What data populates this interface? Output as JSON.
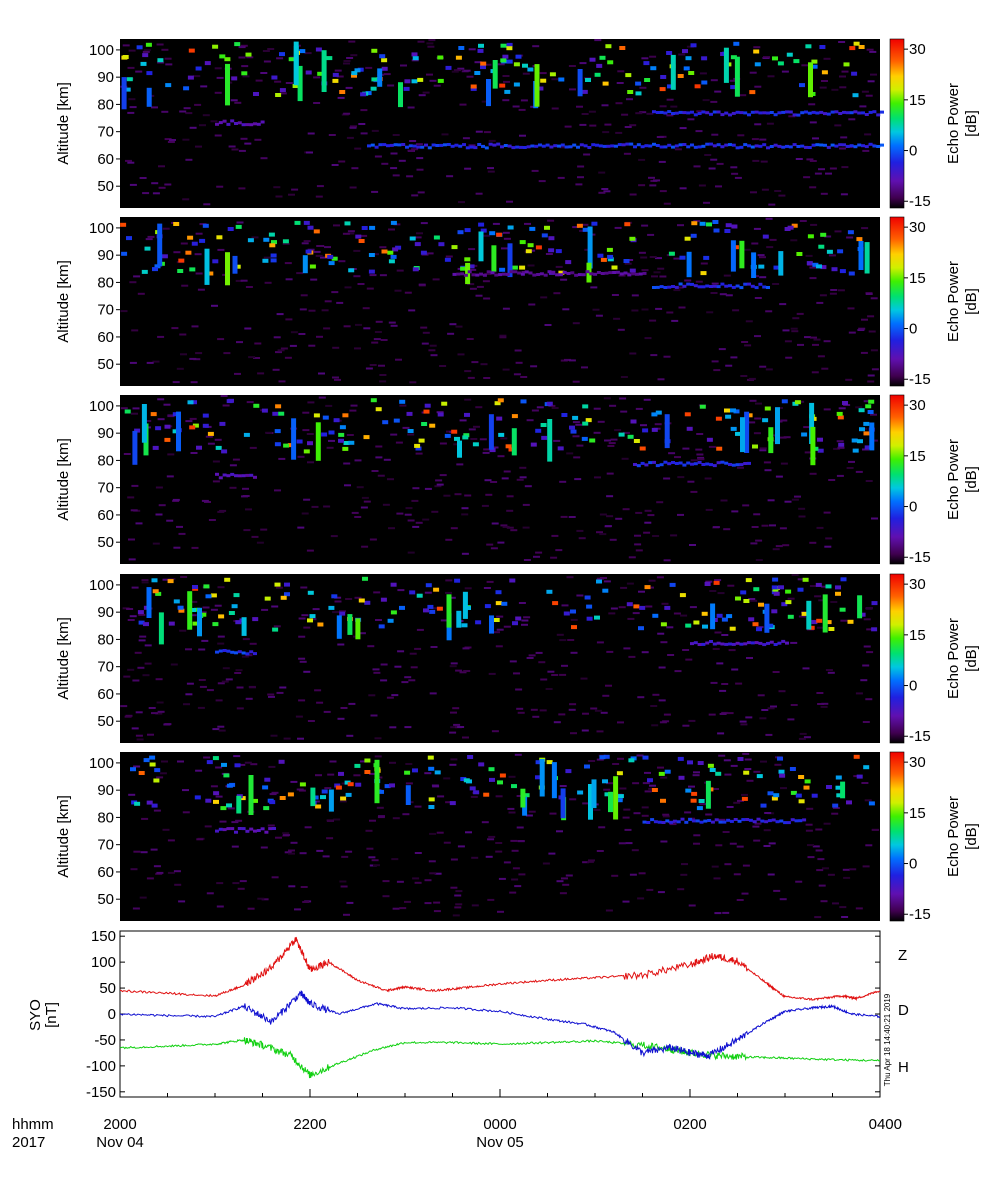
{
  "chart_data": [
    {
      "type": "heatmap",
      "title": "",
      "ylabel": "Altitude [km]",
      "ylim": [
        42,
        104
      ],
      "yticks": [
        50,
        60,
        70,
        80,
        90,
        100
      ],
      "colorbar": {
        "label": "Echo Power [dB]",
        "range": [
          -17,
          33
        ],
        "ticks": [
          -15,
          0,
          15,
          30
        ]
      },
      "features": [
        {
          "t0": 22.6,
          "t1": 28.0,
          "alt": 64.5,
          "power": -2
        },
        {
          "t0": 25.6,
          "t1": 28.0,
          "alt": 76.5,
          "power": -3
        },
        {
          "t0": 21.0,
          "t1": 21.5,
          "alt": 73.0,
          "power": -8
        }
      ]
    },
    {
      "type": "heatmap",
      "title": "",
      "ylabel": "Altitude [km]",
      "ylim": [
        42,
        104
      ],
      "yticks": [
        50,
        60,
        70,
        80,
        90,
        100
      ],
      "colorbar": {
        "label": "Echo Power [dB]",
        "range": [
          -17,
          33
        ],
        "ticks": [
          -15,
          0,
          15,
          30
        ]
      },
      "features": [
        {
          "t0": 25.6,
          "t1": 26.8,
          "alt": 78.5,
          "power": -2
        },
        {
          "t0": 23.5,
          "t1": 25.5,
          "alt": 83.0,
          "power": -10
        }
      ]
    },
    {
      "type": "heatmap",
      "title": "",
      "ylabel": "Altitude [km]",
      "ylim": [
        42,
        104
      ],
      "yticks": [
        50,
        60,
        70,
        80,
        90,
        100
      ],
      "colorbar": {
        "label": "Echo Power [dB]",
        "range": [
          -17,
          33
        ],
        "ticks": [
          -15,
          0,
          15,
          30
        ]
      },
      "features": [
        {
          "t0": 25.4,
          "t1": 26.6,
          "alt": 78.5,
          "power": -3
        },
        {
          "t0": 21.0,
          "t1": 21.4,
          "alt": 74.0,
          "power": -8
        }
      ]
    },
    {
      "type": "heatmap",
      "title": "",
      "ylabel": "Altitude [km]",
      "ylim": [
        42,
        104
      ],
      "yticks": [
        50,
        60,
        70,
        80,
        90,
        100
      ],
      "colorbar": {
        "label": "Echo Power [dB]",
        "range": [
          -17,
          33
        ],
        "ticks": [
          -15,
          0,
          15,
          30
        ]
      },
      "features": [
        {
          "t0": 21.0,
          "t1": 21.4,
          "alt": 75.0,
          "power": -2
        },
        {
          "t0": 26.0,
          "t1": 27.0,
          "alt": 78.5,
          "power": -6
        }
      ]
    },
    {
      "type": "heatmap",
      "title": "",
      "ylabel": "Altitude [km]",
      "ylim": [
        42,
        104
      ],
      "yticks": [
        50,
        60,
        70,
        80,
        90,
        100
      ],
      "colorbar": {
        "label": "Echo Power [dB]",
        "range": [
          -17,
          33
        ],
        "ticks": [
          -15,
          0,
          15,
          30
        ]
      },
      "features": [
        {
          "t0": 25.5,
          "t1": 27.2,
          "alt": 78.5,
          "power": -3
        },
        {
          "t0": 21.0,
          "t1": 21.6,
          "alt": 75.0,
          "power": -7
        }
      ]
    },
    {
      "type": "line",
      "title": "",
      "ylabel_lines": [
        "SYO",
        "[nT]"
      ],
      "ylim": [
        -160,
        160
      ],
      "yticks": [
        -150,
        -100,
        -50,
        0,
        50,
        100,
        150
      ],
      "series": [
        {
          "name": "Z",
          "color": "#e01010",
          "x": [
            20.0,
            20.5,
            21.0,
            21.3,
            21.6,
            21.85,
            22.0,
            22.2,
            22.5,
            22.8,
            23.0,
            23.3,
            23.6,
            24.0,
            24.5,
            25.0,
            25.5,
            26.0,
            26.25,
            26.5,
            26.8,
            27.0,
            27.3,
            27.6,
            27.75,
            28.0
          ],
          "y": [
            45,
            40,
            35,
            55,
            90,
            145,
            85,
            100,
            65,
            45,
            52,
            45,
            50,
            58,
            65,
            70,
            75,
            95,
            112,
            102,
            60,
            33,
            28,
            35,
            30,
            45
          ]
        },
        {
          "name": "D",
          "color": "#10d010",
          "x": [
            20.0,
            20.5,
            21.0,
            21.3,
            21.5,
            21.8,
            22.0,
            22.3,
            22.7,
            23.0,
            23.5,
            24.0,
            24.5,
            25.0,
            25.5,
            25.8,
            26.0,
            26.3,
            26.6,
            27.0,
            27.5,
            28.0
          ],
          "y": [
            -65,
            -62,
            -58,
            -50,
            -60,
            -80,
            -118,
            -95,
            -68,
            -55,
            -55,
            -58,
            -55,
            -52,
            -60,
            -68,
            -75,
            -80,
            -83,
            -85,
            -88,
            -90
          ]
        },
        {
          "name": "H",
          "color": "#1010d0",
          "x": [
            20.0,
            20.5,
            21.0,
            21.3,
            21.6,
            21.9,
            22.0,
            22.3,
            22.7,
            23.0,
            23.5,
            24.0,
            24.5,
            24.9,
            25.2,
            25.5,
            25.8,
            26.0,
            26.2,
            26.5,
            26.8,
            27.0,
            27.3,
            27.5,
            27.7,
            28.0
          ],
          "y": [
            0,
            -3,
            -5,
            15,
            -15,
            40,
            20,
            0,
            20,
            10,
            12,
            5,
            -10,
            -20,
            -35,
            -75,
            -65,
            -75,
            -80,
            -50,
            -15,
            5,
            12,
            15,
            0,
            -5
          ]
        }
      ]
    }
  ],
  "time_axis": {
    "range_hours": [
      20,
      28
    ],
    "ticks": [
      {
        "t": 20,
        "label": "2000",
        "date": "Nov 04"
      },
      {
        "t": 22,
        "label": "2200",
        "date": ""
      },
      {
        "t": 24,
        "label": "0000",
        "date": "Nov 05"
      },
      {
        "t": 26,
        "label": "0200",
        "date": ""
      },
      {
        "t": 28,
        "label": "0400",
        "date": ""
      }
    ],
    "format_label": "hhmm",
    "year_label": "2017"
  },
  "timestamp": "Thu Apr 18 14:40:21 2019",
  "colors": {
    "background": "#ffffff",
    "plot_bg": "#000000",
    "axis": "#000000"
  }
}
